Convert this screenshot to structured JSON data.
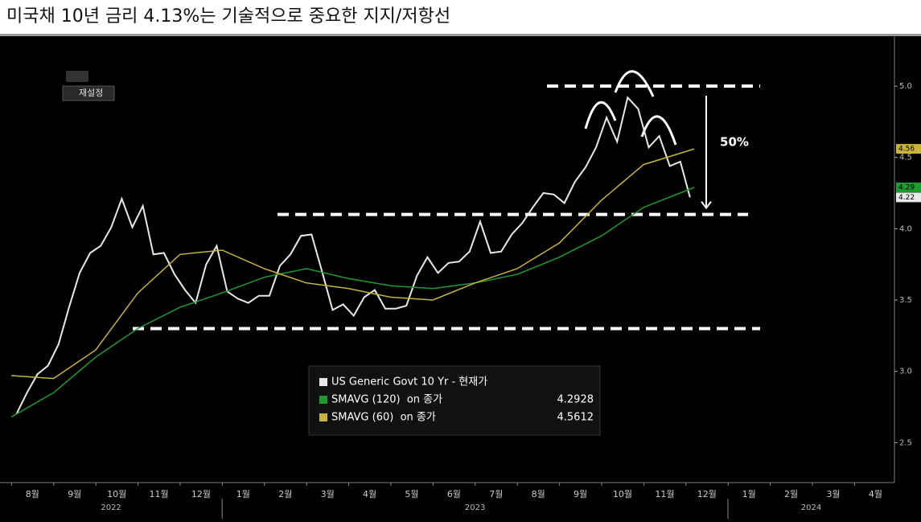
{
  "chart_data": {
    "type": "line",
    "title": "미국채 10년 금리 4.13%는 기술적으로 중요한 지지/저항선",
    "reset_button": "재설정",
    "annotation": "50%",
    "levels": [
      5.0,
      4.1,
      3.3
    ],
    "xlim": [
      -0.27,
      20.95
    ],
    "ylim": [
      2.22,
      5.35
    ],
    "grid": false,
    "yticks": [
      {
        "value": 5,
        "label": "5.0"
      },
      {
        "value": 4.5,
        "label": "4.5"
      },
      {
        "value": 4,
        "label": "4.0"
      },
      {
        "value": 3.5,
        "label": "3.5"
      },
      {
        "value": 3,
        "label": "3.0"
      },
      {
        "value": 2.5,
        "label": "2.5"
      }
    ],
    "xticks": [
      {
        "value": 0.5,
        "label": "8월"
      },
      {
        "value": 1.5,
        "label": "9월"
      },
      {
        "value": 2.5,
        "label": "10월"
      },
      {
        "value": 3.5,
        "label": "11월"
      },
      {
        "value": 4.5,
        "label": "12월"
      },
      {
        "value": 5.5,
        "label": "1월"
      },
      {
        "value": 6.5,
        "label": "2월"
      },
      {
        "value": 7.5,
        "label": "3월"
      },
      {
        "value": 8.5,
        "label": "4월"
      },
      {
        "value": 9.5,
        "label": "5월"
      },
      {
        "value": 10.5,
        "label": "6월"
      },
      {
        "value": 11.5,
        "label": "7월"
      },
      {
        "value": 12.5,
        "label": "8월"
      },
      {
        "value": 13.5,
        "label": "9월"
      },
      {
        "value": 14.5,
        "label": "10월"
      },
      {
        "value": 15.5,
        "label": "11월"
      },
      {
        "value": 16.5,
        "label": "12월"
      },
      {
        "value": 17.5,
        "label": "1월"
      },
      {
        "value": 18.5,
        "label": "2월"
      },
      {
        "value": 19.5,
        "label": "3월"
      },
      {
        "value": 20.5,
        "label": "4월"
      }
    ],
    "years": [
      {
        "label": "2022",
        "start": -0.27,
        "end": 5
      },
      {
        "label": "2023",
        "start": 5,
        "end": 17
      },
      {
        "label": "2024",
        "start": 17,
        "end": 20.95
      }
    ],
    "series": [
      {
        "name": "US Generic Govt 10 Yr - 현재가",
        "color": "#e8e8e8",
        "end_tag": 4.22,
        "x": [
          0.12,
          0.37,
          0.62,
          0.87,
          1.12,
          1.37,
          1.62,
          1.87,
          2.12,
          2.37,
          2.62,
          2.87,
          3.12,
          3.37,
          3.62,
          3.87,
          4.12,
          4.37,
          4.62,
          4.87,
          5.12,
          5.37,
          5.62,
          5.87,
          6.12,
          6.37,
          6.62,
          6.87,
          7.12,
          7.37,
          7.62,
          7.87,
          8.12,
          8.37,
          8.62,
          8.87,
          9.12,
          9.37,
          9.62,
          9.87,
          10.12,
          10.37,
          10.62,
          10.87,
          11.12,
          11.37,
          11.62,
          11.87,
          12.12,
          12.37,
          12.62,
          12.87,
          13.12,
          13.37,
          13.62,
          13.87,
          14.12,
          14.37,
          14.62,
          14.87,
          15.12,
          15.37,
          15.62,
          15.87,
          16.1
        ],
        "values": [
          2.7,
          2.85,
          2.98,
          3.04,
          3.19,
          3.45,
          3.69,
          3.83,
          3.88,
          4.01,
          4.21,
          4.01,
          4.16,
          3.82,
          3.83,
          3.68,
          3.57,
          3.48,
          3.75,
          3.88,
          3.56,
          3.51,
          3.48,
          3.53,
          3.53,
          3.74,
          3.82,
          3.95,
          3.96,
          3.7,
          3.43,
          3.47,
          3.39,
          3.52,
          3.57,
          3.44,
          3.44,
          3.46,
          3.67,
          3.8,
          3.69,
          3.76,
          3.77,
          3.84,
          4.05,
          3.83,
          3.84,
          3.96,
          4.04,
          4.15,
          4.25,
          4.24,
          4.18,
          4.33,
          4.43,
          4.57,
          4.78,
          4.61,
          4.92,
          4.84,
          4.57,
          4.65,
          4.44,
          4.47,
          4.22
        ]
      },
      {
        "name": "SMAVG (120)  on 종가",
        "color": "#1f9a2e",
        "last_value": 4.2928,
        "end_tag": 4.29,
        "x": [
          0,
          1,
          2,
          3,
          4,
          5,
          6,
          7,
          8,
          9,
          10,
          11,
          12,
          13,
          14,
          15,
          16.2
        ],
        "values": [
          2.68,
          2.85,
          3.1,
          3.3,
          3.45,
          3.55,
          3.66,
          3.72,
          3.65,
          3.6,
          3.58,
          3.62,
          3.68,
          3.8,
          3.95,
          4.15,
          4.29
        ]
      },
      {
        "name": "SMAVG (60)  on 종가",
        "color": "#c8b43a",
        "last_value": 4.5612,
        "end_tag": 4.56,
        "x": [
          0,
          1,
          2,
          3,
          4,
          5,
          6,
          7,
          8,
          9,
          10,
          11,
          12,
          13,
          14,
          15,
          16.2
        ],
        "values": [
          2.97,
          2.95,
          3.15,
          3.55,
          3.82,
          3.85,
          3.72,
          3.62,
          3.58,
          3.52,
          3.5,
          3.62,
          3.72,
          3.9,
          4.2,
          4.45,
          4.56
        ]
      }
    ]
  }
}
